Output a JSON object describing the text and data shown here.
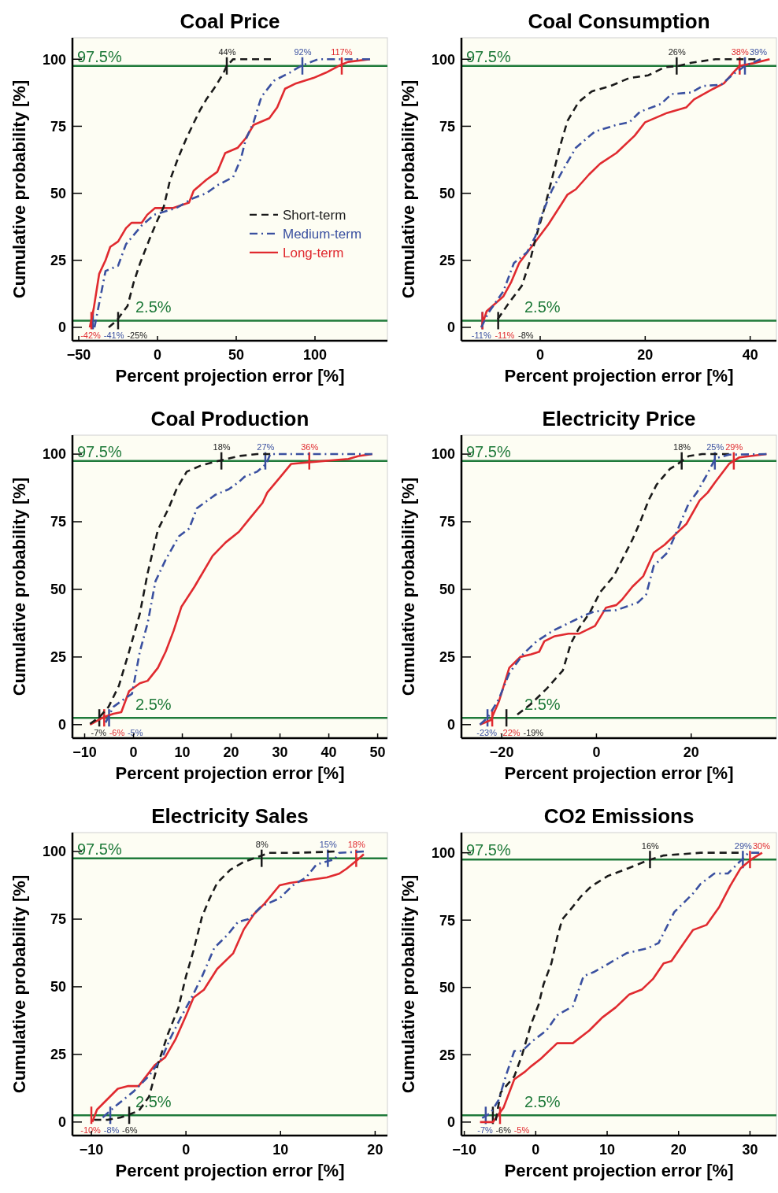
{
  "chart_data": [
    {
      "type": "line",
      "title": "Coal Price",
      "xlabel": "Percent projection error [%]",
      "ylabel": "Cumulative probability [%]",
      "xlim": [
        -54,
        146
      ],
      "xticks": [
        {
          "value": -50,
          "label": "−50"
        },
        0,
        50,
        100
      ],
      "ylim": [
        -5,
        108
      ],
      "yticks": [
        0,
        25,
        50,
        75,
        100
      ],
      "legend": "right",
      "ref_lines": [
        {
          "axis": "y",
          "value": 97.5,
          "label": "97.5%",
          "color": "#1f7a3a"
        },
        {
          "axis": "y",
          "value": 2.5,
          "label": "2.5%",
          "color": "#1f7a3a"
        }
      ],
      "annotations": [
        {
          "text": "-25%",
          "x": -25,
          "y": 2.5
        },
        {
          "text": "-41%",
          "x": -41,
          "y": 2.5
        },
        {
          "text": "-42%",
          "x": -42,
          "y": 2.5
        },
        {
          "text": "44%",
          "x": 44,
          "y": 97.5
        },
        {
          "text": "92%",
          "x": 92,
          "y": 97.5
        },
        {
          "text": "117%",
          "x": 117,
          "y": 97.5
        }
      ],
      "series": [
        {
          "name": "Short-term",
          "color": "#1a1a1a",
          "line_style": "dashed",
          "x": [
            -31,
            -26,
            -19,
            -15,
            -11,
            -5,
            0,
            4,
            8,
            13,
            18,
            22,
            27,
            31,
            37,
            42,
            44,
            48,
            72
          ],
          "values": [
            0,
            2.5,
            8,
            17,
            24,
            33,
            40,
            45,
            55,
            63,
            70,
            75,
            81,
            85,
            90,
            95,
            97.5,
            100,
            100
          ]
        },
        {
          "name": "Medium-term",
          "color": "#3a50a0",
          "line_style": "dashdot",
          "x": [
            -40,
            -36,
            -33,
            -25,
            -20,
            -10,
            -2,
            12,
            22,
            31,
            38,
            48,
            53,
            56,
            61,
            66,
            74,
            84,
            91,
            102,
            135
          ],
          "values": [
            0,
            12,
            21,
            23,
            31,
            38,
            42,
            44.5,
            48,
            50,
            53,
            56,
            63,
            70,
            76.5,
            86,
            92,
            95,
            97.5,
            100,
            100
          ]
        },
        {
          "name": "Long-term",
          "color": "#e02a2f",
          "line_style": "solid",
          "x": [
            -43,
            -40.5,
            -37,
            -33,
            -30,
            -25,
            -20,
            -16.5,
            -10,
            -6.5,
            -1.5,
            10,
            20,
            23,
            31,
            38,
            43,
            51,
            56,
            61,
            71,
            76,
            81,
            88,
            99,
            107,
            115,
            121,
            135
          ],
          "values": [
            0,
            7,
            20,
            25,
            30,
            32,
            37,
            39,
            39,
            42,
            44.5,
            44.5,
            46.5,
            51,
            55,
            58,
            65,
            67,
            70.5,
            75.5,
            78,
            82,
            89,
            91,
            93,
            95,
            97.5,
            99,
            100
          ]
        }
      ]
    },
    {
      "type": "line",
      "title": "Coal Consumption",
      "xlabel": "Percent projection error [%]",
      "ylabel": "Cumulative probability [%]",
      "xlim": [
        -15,
        45
      ],
      "xticks": [
        0,
        20,
        40
      ],
      "ylim": [
        -5,
        108
      ],
      "yticks": [
        0,
        25,
        50,
        75,
        100
      ],
      "ref_lines": [
        {
          "axis": "y",
          "value": 97.5,
          "label": "97.5%",
          "color": "#1f7a3a"
        },
        {
          "axis": "y",
          "value": 2.5,
          "label": "2.5%",
          "color": "#1f7a3a"
        }
      ],
      "annotations": [
        {
          "text": "-8%",
          "x": -8,
          "y": 2.5
        },
        {
          "text": "-11%",
          "x": -11,
          "y": 2.5
        },
        {
          "text": "-11%",
          "x": -11,
          "y": 2.5
        },
        {
          "text": "26%",
          "x": 26,
          "y": 97.5
        },
        {
          "text": "39%",
          "x": 39,
          "y": 97.5
        },
        {
          "text": "38%",
          "x": 38,
          "y": 97.5
        }
      ],
      "series": [
        {
          "color": "#1a1a1a",
          "line_style": "dashed",
          "x": [
            -8.1,
            -6,
            -3.5,
            -1.9,
            -0.9,
            0.6,
            2.2,
            3.7,
            5.2,
            7.3,
            9.8,
            13.4,
            17,
            20.6,
            23.7,
            26.3,
            28.8,
            33.4,
            41
          ],
          "values": [
            3,
            9,
            15.5,
            25,
            33,
            43,
            55,
            67,
            77,
            84,
            88,
            90,
            93,
            94,
            97,
            97.5,
            98.7,
            100,
            100
          ]
        },
        {
          "color": "#3a50a0",
          "line_style": "dashdot",
          "x": [
            -11.2,
            -10,
            -7,
            -5,
            -2.5,
            -0.9,
            0.1,
            2.2,
            4.7,
            6.8,
            10.4,
            14.5,
            17,
            19,
            23,
            25,
            28.8,
            30.9,
            34.5,
            36.5,
            39,
            42
          ],
          "values": [
            0,
            5,
            13.5,
            24,
            28,
            34,
            41,
            51,
            60,
            67,
            73,
            75.5,
            76.5,
            80.4,
            83.3,
            87,
            87.6,
            90,
            90.5,
            94,
            97.5,
            100
          ]
        },
        {
          "color": "#e02a2f",
          "line_style": "solid",
          "x": [
            -11.2,
            -10.2,
            -7,
            -5.5,
            -4,
            -0.9,
            1.6,
            5.2,
            6.8,
            9.3,
            11.4,
            14.5,
            18,
            20,
            24.2,
            27.8,
            29.3,
            33,
            35,
            37,
            38,
            40.6,
            43.7
          ],
          "values": [
            0,
            6,
            11.6,
            17,
            24,
            32,
            38.5,
            49.5,
            51.5,
            57,
            61,
            65,
            71.5,
            76.5,
            80,
            82,
            85,
            89,
            91,
            95.5,
            97.5,
            98.5,
            100
          ]
        }
      ]
    },
    {
      "type": "line",
      "title": "Coal Production",
      "xlabel": "Percent projection error [%]",
      "ylabel": "Cumulative probability [%]",
      "xlim": [
        -12.5,
        52
      ],
      "xticks": [
        {
          "value": -10,
          "label": "−10"
        },
        0,
        10,
        20,
        30,
        40,
        50
      ],
      "ylim": [
        -5,
        107
      ],
      "yticks": [
        0,
        25,
        50,
        75,
        100
      ],
      "ref_lines": [
        {
          "axis": "y",
          "value": 97.5,
          "label": "97.5%",
          "color": "#1f7a3a"
        },
        {
          "axis": "y",
          "value": 2.5,
          "label": "2.5%",
          "color": "#1f7a3a"
        }
      ],
      "annotations": [
        {
          "text": "-7%",
          "x": -7,
          "y": 2.5
        },
        {
          "text": "-5%",
          "x": -5,
          "y": 2.5
        },
        {
          "text": "-6%",
          "x": -6,
          "y": 2.5
        },
        {
          "text": "18%",
          "x": 18,
          "y": 97.5
        },
        {
          "text": "27%",
          "x": 27,
          "y": 97.5
        },
        {
          "text": "36%",
          "x": 36,
          "y": 97.5
        }
      ],
      "series": [
        {
          "color": "#1a1a1a",
          "line_style": "dashed",
          "x": [
            -8.9,
            -7,
            -5.1,
            -3,
            -0.9,
            1.3,
            2.9,
            5,
            7.2,
            8.8,
            10.9,
            14.1,
            18.4,
            21.6,
            25.3,
            28
          ],
          "values": [
            0.3,
            2.7,
            6.6,
            14.3,
            27,
            41,
            56,
            72,
            80,
            87,
            93.5,
            96,
            97.9,
            99.3,
            100,
            100
          ]
        },
        {
          "color": "#3a50a0",
          "line_style": "dashdot",
          "x": [
            -5.7,
            -4.1,
            -1.9,
            -0.3,
            1.3,
            2.9,
            4.5,
            6.6,
            9.3,
            11.4,
            13,
            16.8,
            19.5,
            21.6,
            22.7,
            25.3,
            27.2,
            28,
            48.9
          ],
          "values": [
            0.8,
            6.6,
            9.5,
            11.4,
            27,
            37.5,
            53,
            61,
            69.6,
            72.5,
            80,
            85,
            87,
            89.7,
            91.6,
            93.5,
            96.4,
            100,
            100
          ]
        },
        {
          "color": "#e02a2f",
          "line_style": "solid",
          "x": [
            -8.9,
            -6.2,
            -4.1,
            -2.5,
            -0.9,
            1.3,
            2.9,
            5,
            6.6,
            8.2,
            9.8,
            12.5,
            16.2,
            18.9,
            21.6,
            23.7,
            26.4,
            27.4,
            30.1,
            32.3,
            36,
            44,
            46.1,
            48.9
          ],
          "values": [
            0,
            2.7,
            4,
            4.6,
            12.4,
            15.3,
            16.2,
            21,
            27,
            34.6,
            43.5,
            51,
            62.4,
            67.4,
            71.3,
            76,
            81.9,
            85.8,
            91.6,
            96.4,
            97,
            98.2,
            99.3,
            100
          ]
        }
      ]
    },
    {
      "type": "line",
      "title": "Electricity Price",
      "xlabel": "Percent projection error [%]",
      "ylabel": "Cumulative probability [%]",
      "xlim": [
        -28.5,
        38
      ],
      "xticks": [
        {
          "value": -20,
          "label": "−20"
        },
        0,
        20
      ],
      "ylim": [
        -5,
        107
      ],
      "yticks": [
        0,
        25,
        50,
        75,
        100
      ],
      "ref_lines": [
        {
          "axis": "y",
          "value": 97.5,
          "label": "97.5%",
          "color": "#1f7a3a"
        },
        {
          "axis": "y",
          "value": 2.5,
          "label": "2.5%",
          "color": "#1f7a3a"
        }
      ],
      "annotations": [
        {
          "text": "-19%",
          "x": -19,
          "y": 2.5
        },
        {
          "text": "-23%",
          "x": -23,
          "y": 2.5
        },
        {
          "text": "-22%",
          "x": -22,
          "y": 2.5
        },
        {
          "text": "18%",
          "x": 18,
          "y": 97.5
        },
        {
          "text": "25%",
          "x": 25,
          "y": 97.5
        },
        {
          "text": "29%",
          "x": 29,
          "y": 97.5
        }
      ],
      "series": [
        {
          "color": "#1a1a1a",
          "line_style": "dashed",
          "x": [
            -16.7,
            -13.9,
            -10.5,
            -7.1,
            -5.4,
            -3.7,
            -1.4,
            0.8,
            3.7,
            5.9,
            7.6,
            9.3,
            11,
            12.7,
            15.5,
            17.2,
            19.5,
            22.3,
            28
          ],
          "values": [
            3.7,
            7.5,
            13.3,
            20,
            30,
            35.6,
            41.4,
            49,
            55,
            62.6,
            68.4,
            75.2,
            82.9,
            88.7,
            94.5,
            96.4,
            99.3,
            100,
            100
          ]
        },
        {
          "color": "#3a50a0",
          "line_style": "dashdot",
          "x": [
            -24.6,
            -22.9,
            -20.6,
            -18.4,
            -15.5,
            -12.7,
            -9.3,
            -5.9,
            -2.5,
            -0.3,
            4.2,
            8.8,
            10.5,
            12.1,
            15,
            17.2,
            19.5,
            21.2,
            23.4,
            25.1,
            28,
            35.9
          ],
          "values": [
            0,
            2.7,
            9.5,
            19,
            26,
            30.7,
            34.6,
            37.5,
            40.4,
            41.9,
            42.3,
            45.2,
            48.1,
            58.7,
            63.6,
            72.3,
            81.9,
            85.8,
            92.6,
            98.4,
            99.8,
            100
          ]
        },
        {
          "color": "#e02a2f",
          "line_style": "solid",
          "x": [
            -24.6,
            -22.3,
            -20.6,
            -18.4,
            -16.1,
            -13.8,
            -12.1,
            -11,
            -8.8,
            -5.9,
            -3.7,
            -0.3,
            2,
            4.2,
            5.4,
            7.6,
            9.9,
            12.1,
            14.4,
            16.7,
            19,
            21.8,
            23.5,
            25.1,
            28,
            30.2,
            35.9
          ],
          "values": [
            0,
            1.7,
            8.5,
            21,
            25,
            26,
            26.9,
            30.8,
            32.7,
            33.6,
            33.6,
            36.5,
            43.2,
            44.2,
            46.2,
            51,
            54.9,
            63.6,
            66.5,
            70.4,
            74.2,
            82.9,
            85.8,
            89.7,
            96.4,
            98.8,
            100
          ]
        }
      ]
    },
    {
      "type": "line",
      "title": "Electricity Sales",
      "xlabel": "Percent projection error [%]",
      "ylabel": "Cumulative probability [%]",
      "xlim": [
        -12,
        21.3
      ],
      "xticks": [
        {
          "value": -10,
          "label": "−10"
        },
        0,
        10,
        20
      ],
      "ylim": [
        -5,
        107
      ],
      "yticks": [
        0,
        25,
        50,
        75,
        100
      ],
      "ref_lines": [
        {
          "axis": "y",
          "value": 97.5,
          "label": "97.5%",
          "color": "#1f7a3a"
        },
        {
          "axis": "y",
          "value": 2.5,
          "label": "2.5%",
          "color": "#1f7a3a"
        }
      ],
      "annotations": [
        {
          "text": "-6%",
          "x": -6,
          "y": 2.5
        },
        {
          "text": "-8%",
          "x": -8,
          "y": 2.5
        },
        {
          "text": "-10%",
          "x": -10,
          "y": 2.5
        },
        {
          "text": "8%",
          "x": 8,
          "y": 97.5
        },
        {
          "text": "15%",
          "x": 15,
          "y": 97.5
        },
        {
          "text": "18%",
          "x": 18,
          "y": 97.5
        }
      ],
      "series": [
        {
          "color": "#1a1a1a",
          "line_style": "dashed",
          "x": [
            -9.7,
            -8.3,
            -6.9,
            -5,
            -3.9,
            -3,
            -1.9,
            -0.8,
            0,
            0.8,
            1.7,
            2.5,
            3.3,
            4.7,
            6.1,
            7.7,
            8.8,
            11.6,
            15.7
          ],
          "values": [
            0.8,
            0.8,
            1.7,
            4.1,
            9.4,
            21,
            32.6,
            42.2,
            53.8,
            63.4,
            75.9,
            82.6,
            88.4,
            93.3,
            96.1,
            98.1,
            99.5,
            99.5,
            100
          ]
        },
        {
          "color": "#3a50a0",
          "line_style": "dashdot",
          "x": [
            -8.8,
            -7.2,
            -5.5,
            -3.9,
            -2.5,
            -1.7,
            -0.6,
            0.6,
            1.7,
            3,
            4.4,
            5.5,
            6.6,
            8,
            9.9,
            11.3,
            12.7,
            13.8,
            15.7,
            16.2,
            18.8
          ],
          "values": [
            1.7,
            6.6,
            11.4,
            17.1,
            23.9,
            30.6,
            38.3,
            46,
            53.8,
            64.4,
            69.2,
            74,
            75,
            79.8,
            82.7,
            87.5,
            90.4,
            95.2,
            97.1,
            99.5,
            100
          ]
        },
        {
          "color": "#e02a2f",
          "line_style": "solid",
          "x": [
            -9.9,
            -9.4,
            -7.2,
            -6.1,
            -5,
            -3.3,
            -2.2,
            -1.1,
            0,
            0.8,
            1.9,
            3.3,
            5,
            6.1,
            7.2,
            8.3,
            9.9,
            11,
            12.9,
            14.9,
            16.2,
            17,
            18.2,
            18.8
          ],
          "values": [
            0,
            4.6,
            12.3,
            13.3,
            13.3,
            21,
            23.9,
            30.6,
            39.3,
            46,
            48.9,
            56.6,
            62.4,
            71.1,
            76.9,
            80.7,
            87.5,
            88.4,
            89.4,
            90.4,
            91.8,
            93.7,
            97.1,
            99
          ]
        }
      ]
    },
    {
      "type": "line",
      "title": "CO2 Emissions",
      "xlabel": "Percent projection error [%]",
      "ylabel": "Cumulative probability [%]",
      "xlim": [
        -10.4,
        33.7
      ],
      "xticks": [
        {
          "value": -10,
          "label": "−10"
        },
        0,
        10,
        20,
        30
      ],
      "ylim": [
        -5,
        107.5
      ],
      "yticks": [
        0,
        25,
        50,
        75,
        100
      ],
      "ref_lines": [
        {
          "axis": "y",
          "value": 97.5,
          "label": "97.5%",
          "color": "#1f7a3a"
        },
        {
          "axis": "y",
          "value": 2.5,
          "label": "2.5%",
          "color": "#1f7a3a"
        }
      ],
      "annotations": [
        {
          "text": "-6%",
          "x": -6,
          "y": 2.5
        },
        {
          "text": "-7%",
          "x": -7,
          "y": 2.5
        },
        {
          "text": "-5%",
          "x": -5,
          "y": 2.5
        },
        {
          "text": "16%",
          "x": 16,
          "y": 97.5
        },
        {
          "text": "29%",
          "x": 29,
          "y": 97.5
        },
        {
          "text": "30%",
          "x": 30,
          "y": 97.5
        }
      ],
      "series": [
        {
          "color": "#1a1a1a",
          "line_style": "dashed",
          "x": [
            -5.6,
            -4.9,
            -3,
            -1.9,
            -0.7,
            0.4,
            1.1,
            2.2,
            3,
            3.7,
            5.2,
            6.3,
            7.8,
            10.1,
            13,
            15.7,
            17.9,
            23.1,
            28.4
          ],
          "values": [
            0.6,
            11,
            17,
            25,
            36,
            43.6,
            51.2,
            59,
            68.5,
            75.2,
            80,
            83.7,
            87.6,
            91.4,
            94.3,
            97.2,
            99,
            100,
            100
          ]
        },
        {
          "color": "#3a50a0",
          "line_style": "dashdot",
          "x": [
            -7.5,
            -6.3,
            -5.2,
            -4.1,
            -3,
            -1.9,
            -0.4,
            1.5,
            3,
            5.2,
            6.7,
            8.2,
            10.1,
            12.7,
            15.7,
            17.2,
            19.4,
            22,
            23.1,
            25,
            26.9,
            28.7,
            29.8,
            31.3
          ],
          "values": [
            1.5,
            3.4,
            8.2,
            17.8,
            26.4,
            26.4,
            30.2,
            34,
            39.7,
            43,
            54.2,
            55.8,
            58.7,
            62.7,
            64.6,
            66.5,
            78,
            84.8,
            88.5,
            92.3,
            92.3,
            97.1,
            100,
            100
          ]
        },
        {
          "color": "#e02a2f",
          "line_style": "solid",
          "x": [
            -7.8,
            -6,
            -4.5,
            -3,
            -1.5,
            -0.7,
            0.7,
            3,
            5.2,
            7.5,
            9.3,
            11.2,
            13.1,
            14.9,
            16.4,
            17.9,
            19,
            20.5,
            22,
            23.9,
            25.7,
            27.2,
            28.7,
            30.2,
            31.7
          ],
          "values": [
            0,
            0,
            5.4,
            15.9,
            18.7,
            20.6,
            23.5,
            29.3,
            29.3,
            34,
            38.8,
            42.6,
            47.4,
            49.3,
            53.1,
            58.9,
            59.8,
            65.6,
            71.3,
            73.2,
            79.9,
            87.6,
            94.3,
            97.6,
            100
          ]
        }
      ]
    }
  ]
}
